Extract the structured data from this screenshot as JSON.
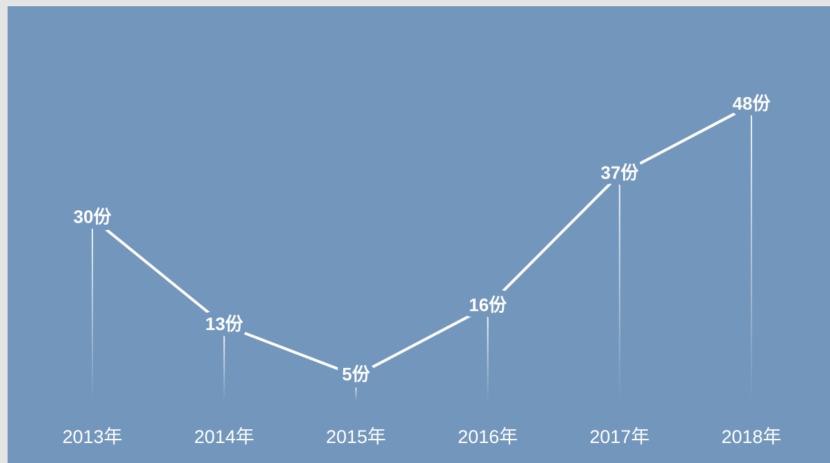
{
  "chart_data": {
    "type": "line",
    "categories": [
      "2013年",
      "2014年",
      "2015年",
      "2016年",
      "2017年",
      "2018年"
    ],
    "values": [
      30,
      13,
      5,
      16,
      37,
      48
    ],
    "value_labels": [
      "30份",
      "13份",
      "5份",
      "16份",
      "37份",
      "48份"
    ],
    "color": "#ffffff"
  }
}
